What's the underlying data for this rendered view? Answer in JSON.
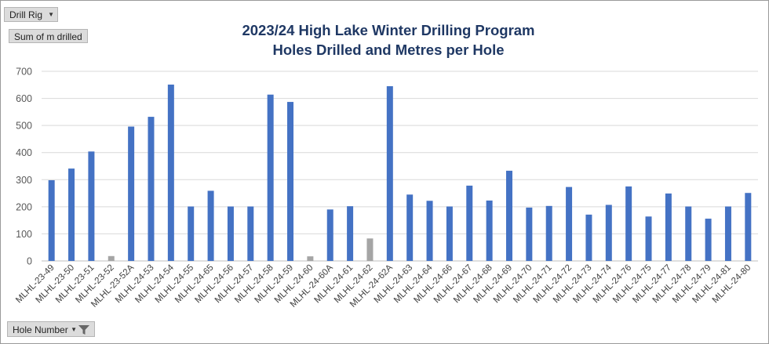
{
  "pivot": {
    "filter_field": "Drill Rig",
    "value_field": "Sum of m drilled",
    "axis_field": "Hole Number"
  },
  "colors": {
    "primary_bar": "#4472c4",
    "secondary_bar": "#a5a5a5",
    "title": "#1f3864",
    "grid": "#d9d9d9"
  },
  "chart_data": {
    "type": "bar",
    "title": "2023/24 High Lake Winter Drilling Program",
    "subtitle": "Holes Drilled and Metres per Hole",
    "xlabel": "",
    "ylabel": "",
    "ylim": [
      0,
      700
    ],
    "yticks": [
      0,
      100,
      200,
      300,
      400,
      500,
      600,
      700
    ],
    "grid": true,
    "legend": "none",
    "categories": [
      "MLHL-23-49",
      "MLHL-23-50",
      "MLHL-23-51",
      "MLHL-23-52",
      "MLHL-23-52A",
      "MLHL-24-53",
      "MLHL-24-54",
      "MLHL-24-55",
      "MLHL-24-65",
      "MLHL-24-56",
      "MLHL-24-57",
      "MLHL-24-58",
      "MLHL-24-59",
      "MLHL-24-60",
      "MLHL-24-60A",
      "MLHL-24-61",
      "MLHL-24-62",
      "MLHL-24-62A",
      "MLHL-24-63",
      "MLHL-24-64",
      "MLHL-24-66",
      "MLHL-24-67",
      "MLHL-24-68",
      "MLHL-24-69",
      "MLHL-24-70",
      "MLHL-24-71",
      "MLHL-24-72",
      "MLHL-24-73",
      "MLHL-24-74",
      "MLHL-24-76",
      "MLHL-24-75",
      "MLHL-24-77",
      "MLHL-24-78",
      "MLHL-24-79",
      "MLHL-24-81",
      "MLHL-24-80"
    ],
    "values": [
      298,
      341,
      404,
      18,
      496,
      532,
      651,
      201,
      259,
      201,
      201,
      614,
      587,
      17,
      190,
      202,
      83,
      645,
      245,
      222,
      201,
      278,
      223,
      333,
      197,
      203,
      273,
      171,
      207,
      275,
      164,
      249,
      201,
      156,
      201,
      251
    ],
    "bar_colors": [
      "primary",
      "primary",
      "primary",
      "secondary",
      "primary",
      "primary",
      "primary",
      "primary",
      "primary",
      "primary",
      "primary",
      "primary",
      "primary",
      "secondary",
      "primary",
      "primary",
      "secondary",
      "primary",
      "primary",
      "primary",
      "primary",
      "primary",
      "primary",
      "primary",
      "primary",
      "primary",
      "primary",
      "primary",
      "primary",
      "primary",
      "primary",
      "primary",
      "primary",
      "primary",
      "primary",
      "primary"
    ]
  }
}
